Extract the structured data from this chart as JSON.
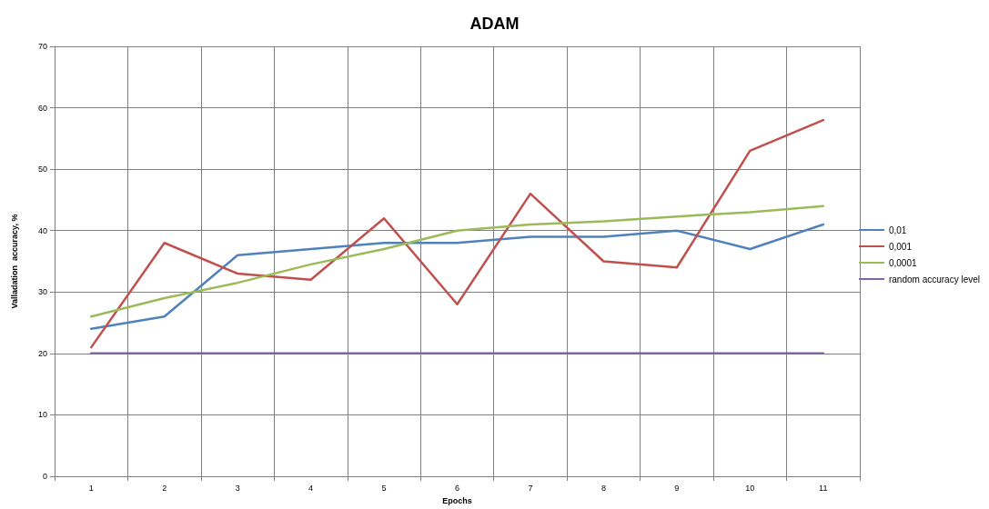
{
  "chart_data": {
    "type": "line",
    "title": "ADAM",
    "xlabel": "Epochs",
    "ylabel": "Valladation  accuracy, %",
    "categories": [
      "1",
      "2",
      "3",
      "4",
      "5",
      "6",
      "7",
      "8",
      "9",
      "10",
      "11"
    ],
    "series": [
      {
        "name": "0,01",
        "color": "#4f81bd",
        "values": [
          24,
          26,
          36,
          37,
          38,
          38,
          39,
          39,
          40,
          37,
          41
        ]
      },
      {
        "name": "0,001",
        "color": "#c0504d",
        "values": [
          21,
          38,
          33,
          32,
          42,
          28,
          46,
          35,
          34,
          53,
          58
        ]
      },
      {
        "name": "0,0001",
        "color": "#9bbb59",
        "values": [
          26,
          29,
          31.5,
          34.5,
          37,
          40,
          41,
          41.5,
          42.3,
          43,
          44
        ]
      },
      {
        "name": "random accuracy level",
        "color": "#8064a2",
        "values": [
          20,
          20,
          20,
          20,
          20,
          20,
          20,
          20,
          20,
          20,
          20
        ]
      }
    ],
    "ylim": [
      0,
      70
    ],
    "yticks": [
      0,
      10,
      20,
      30,
      40,
      50,
      60,
      70
    ],
    "grid": true,
    "legend": "right",
    "marker": "none",
    "line_style": "solid"
  }
}
